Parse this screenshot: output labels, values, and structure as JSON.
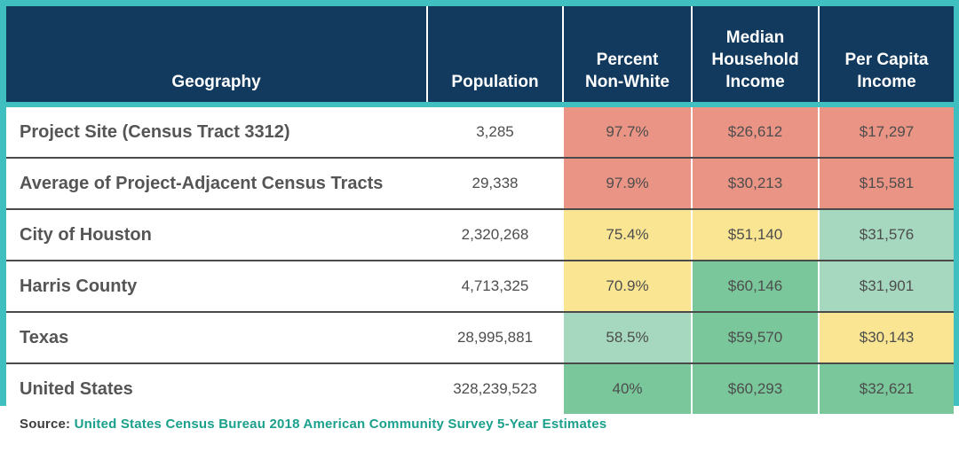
{
  "colors": {
    "frame": "#3fbfbf",
    "header": "#123a5e",
    "red": "#ea9485",
    "yellow": "#f9e592",
    "light_green": "#a5d8be",
    "green": "#79c79a",
    "source_text": "#1aa08c"
  },
  "chart_data": {
    "type": "table",
    "columns": [
      "Geography",
      "Population",
      "Percent Non-White",
      "Median Household Income",
      "Per Capita Income"
    ],
    "header_lines": [
      [
        "Geography"
      ],
      [
        "Population"
      ],
      [
        "Percent",
        "Non-White"
      ],
      [
        "Median",
        "Household",
        "Income"
      ],
      [
        "Per Capita",
        "Income"
      ]
    ],
    "rows": [
      {
        "geography": "Project Site (Census Tract 3312)",
        "population": "3,285",
        "percent_non_white": "97.7%",
        "median_household_income": "$26,612",
        "per_capita_income": "$17,297",
        "colors": [
          "red",
          "red",
          "red"
        ]
      },
      {
        "geography": "Average of Project-Adjacent Census Tracts",
        "population": "29,338",
        "percent_non_white": "97.9%",
        "median_household_income": "$30,213",
        "per_capita_income": "$15,581",
        "colors": [
          "red",
          "red",
          "red"
        ]
      },
      {
        "geography": "City of Houston",
        "population": "2,320,268",
        "percent_non_white": "75.4%",
        "median_household_income": "$51,140",
        "per_capita_income": "$31,576",
        "colors": [
          "yellow",
          "yellow",
          "light_green"
        ]
      },
      {
        "geography": "Harris County",
        "population": "4,713,325",
        "percent_non_white": "70.9%",
        "median_household_income": "$60,146",
        "per_capita_income": "$31,901",
        "colors": [
          "yellow",
          "green",
          "light_green"
        ]
      },
      {
        "geography": "Texas",
        "population": "28,995,881",
        "percent_non_white": "58.5%",
        "median_household_income": "$59,570",
        "per_capita_income": "$30,143",
        "colors": [
          "light_green",
          "green",
          "yellow"
        ]
      },
      {
        "geography": "United States",
        "population": "328,239,523",
        "percent_non_white": "40%",
        "median_household_income": "$60,293",
        "per_capita_income": "$32,621",
        "colors": [
          "green",
          "green",
          "green"
        ]
      }
    ]
  },
  "source": {
    "label": "Source:",
    "text": "United States Census Bureau 2018 American Community Survey 5-Year Estimates"
  }
}
